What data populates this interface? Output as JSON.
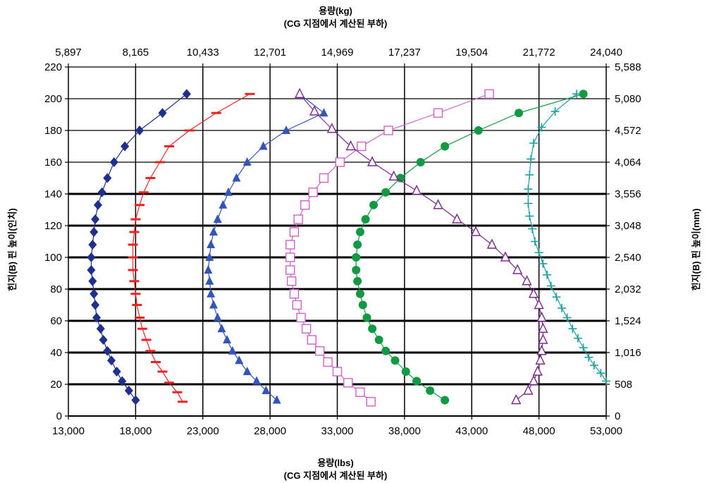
{
  "chart_data": {
    "type": "scatter",
    "top_title_line1": "용량(kg)",
    "top_title_line2": "(CG 지점에서 계산된 부하)",
    "bottom_title_line1": "용량(lbs)",
    "bottom_title_line2": "(CG 지점에서 계산된 부하)",
    "ylabel_left": "힌지(B) 핀 높이(인치)",
    "ylabel_right": "힌지(B) 핀 높이(mm)",
    "xlim": [
      13000,
      53000
    ],
    "ylim": [
      0,
      220
    ],
    "x_ticks_bottom": [
      "13,000",
      "18,000",
      "23,000",
      "28,000",
      "33,000",
      "38,000",
      "43,000",
      "48,000",
      "53,000"
    ],
    "x_ticks_top": [
      "5,897",
      "8,165",
      "10,433",
      "12,701",
      "14,969",
      "17,237",
      "19,504",
      "21,772",
      "24,040"
    ],
    "y_ticks_left": [
      "0",
      "20",
      "40",
      "60",
      "80",
      "100",
      "120",
      "140",
      "160",
      "180",
      "200",
      "220"
    ],
    "y_ticks_right": [
      "0",
      "508",
      "1,016",
      "1,524",
      "2,032",
      "2,540",
      "3,048",
      "3,556",
      "4,064",
      "4,572",
      "5,080",
      "5,588"
    ],
    "grid": true,
    "heavy_gridlines_y": [
      20,
      40,
      60,
      80,
      100,
      120,
      140
    ],
    "legend": "none",
    "series": [
      {
        "color": "#1f2f8f",
        "marker": "diamond",
        "points": [
          [
            21.8,
            203
          ],
          [
            20.0,
            191
          ],
          [
            18.3,
            180
          ],
          [
            17.2,
            170
          ],
          [
            16.4,
            160
          ],
          [
            15.9,
            150
          ],
          [
            15.5,
            141
          ],
          [
            15.2,
            133
          ],
          [
            15.0,
            124
          ],
          [
            14.9,
            116
          ],
          [
            14.8,
            108
          ],
          [
            14.7,
            100
          ],
          [
            14.7,
            92
          ],
          [
            14.8,
            85
          ],
          [
            14.9,
            77
          ],
          [
            15.0,
            70
          ],
          [
            15.1,
            62
          ],
          [
            15.4,
            55
          ],
          [
            15.6,
            48
          ],
          [
            15.9,
            41
          ],
          [
            16.2,
            35
          ],
          [
            16.6,
            28
          ],
          [
            17.0,
            22
          ],
          [
            17.5,
            16
          ],
          [
            18.0,
            10
          ]
        ]
      },
      {
        "color": "#ee2222",
        "marker": "dash",
        "points": [
          [
            26.5,
            203
          ],
          [
            24.0,
            191
          ],
          [
            22.0,
            180
          ],
          [
            20.5,
            170
          ],
          [
            19.8,
            160
          ],
          [
            19.1,
            150
          ],
          [
            18.6,
            141
          ],
          [
            18.3,
            133
          ],
          [
            18.0,
            124
          ],
          [
            17.9,
            116
          ],
          [
            17.8,
            108
          ],
          [
            17.8,
            100
          ],
          [
            17.8,
            92
          ],
          [
            17.9,
            85
          ],
          [
            18.0,
            77
          ],
          [
            18.1,
            70
          ],
          [
            18.3,
            62
          ],
          [
            18.5,
            55
          ],
          [
            18.8,
            48
          ],
          [
            19.1,
            41
          ],
          [
            19.5,
            34
          ],
          [
            20.0,
            28
          ],
          [
            20.5,
            21
          ],
          [
            21.1,
            15
          ],
          [
            21.5,
            9
          ]
        ]
      },
      {
        "color": "#3355bb",
        "marker": "triangle",
        "points": [
          [
            30.2,
            203
          ],
          [
            32.0,
            191
          ],
          [
            29.2,
            180
          ],
          [
            27.5,
            170
          ],
          [
            26.3,
            160
          ],
          [
            25.5,
            150
          ],
          [
            24.9,
            141
          ],
          [
            24.5,
            133
          ],
          [
            24.1,
            124
          ],
          [
            23.8,
            116
          ],
          [
            23.6,
            108
          ],
          [
            23.5,
            100
          ],
          [
            23.4,
            92
          ],
          [
            23.5,
            85
          ],
          [
            23.6,
            77
          ],
          [
            23.8,
            70
          ],
          [
            24.1,
            62
          ],
          [
            24.4,
            55
          ],
          [
            24.8,
            48
          ],
          [
            25.2,
            41
          ],
          [
            25.7,
            35
          ],
          [
            26.3,
            28
          ],
          [
            27.0,
            22
          ],
          [
            27.7,
            16
          ],
          [
            28.5,
            10
          ]
        ]
      },
      {
        "color": "#d060c8",
        "marker": "square",
        "points": [
          [
            44.3,
            203
          ],
          [
            40.5,
            191
          ],
          [
            36.8,
            180
          ],
          [
            34.8,
            170
          ],
          [
            33.2,
            160
          ],
          [
            32.0,
            150
          ],
          [
            31.2,
            141
          ],
          [
            30.6,
            133
          ],
          [
            30.1,
            124
          ],
          [
            29.8,
            116
          ],
          [
            29.5,
            108
          ],
          [
            29.5,
            100
          ],
          [
            29.5,
            92
          ],
          [
            29.6,
            85
          ],
          [
            29.8,
            77
          ],
          [
            30.0,
            70
          ],
          [
            30.3,
            62
          ],
          [
            30.7,
            55
          ],
          [
            31.1,
            48
          ],
          [
            31.7,
            41
          ],
          [
            32.3,
            34
          ],
          [
            33.0,
            28
          ],
          [
            33.8,
            21
          ],
          [
            34.7,
            15
          ],
          [
            35.5,
            9
          ]
        ]
      },
      {
        "color": "#119944",
        "marker": "circle",
        "points": [
          [
            51.3,
            203
          ],
          [
            46.5,
            191
          ],
          [
            43.5,
            180
          ],
          [
            41.0,
            170
          ],
          [
            39.2,
            160
          ],
          [
            37.7,
            150
          ],
          [
            36.6,
            141
          ],
          [
            35.7,
            133
          ],
          [
            35.1,
            124
          ],
          [
            34.7,
            116
          ],
          [
            34.5,
            108
          ],
          [
            34.4,
            100
          ],
          [
            34.4,
            92
          ],
          [
            34.5,
            85
          ],
          [
            34.7,
            77
          ],
          [
            34.9,
            70
          ],
          [
            35.2,
            62
          ],
          [
            35.6,
            55
          ],
          [
            36.1,
            48
          ],
          [
            36.6,
            41
          ],
          [
            37.3,
            35
          ],
          [
            38.1,
            28
          ],
          [
            38.9,
            22
          ],
          [
            39.9,
            16
          ],
          [
            41.0,
            10
          ]
        ]
      },
      {
        "color": "#7a2a8e",
        "marker": "triangle-open",
        "points": [
          [
            30.2,
            203
          ],
          [
            31.3,
            192
          ],
          [
            32.6,
            181
          ],
          [
            34.0,
            170
          ],
          [
            35.6,
            160
          ],
          [
            37.2,
            151
          ],
          [
            38.9,
            142
          ],
          [
            40.5,
            133
          ],
          [
            41.9,
            124
          ],
          [
            43.3,
            116
          ],
          [
            44.5,
            108
          ],
          [
            45.5,
            100
          ],
          [
            46.4,
            92
          ],
          [
            47.1,
            85
          ],
          [
            47.6,
            77
          ],
          [
            48.0,
            70
          ],
          [
            48.2,
            62
          ],
          [
            48.3,
            55
          ],
          [
            48.3,
            48
          ],
          [
            48.2,
            41
          ],
          [
            48.1,
            35
          ],
          [
            47.9,
            28
          ],
          [
            47.6,
            22
          ],
          [
            47.2,
            16
          ],
          [
            46.3,
            10
          ]
        ]
      },
      {
        "color": "#1aa0a0",
        "marker": "plus",
        "points": [
          [
            50.8,
            203
          ],
          [
            49.2,
            192
          ],
          [
            48.2,
            182
          ],
          [
            47.6,
            172
          ],
          [
            47.4,
            162
          ],
          [
            47.3,
            152
          ],
          [
            47.2,
            143
          ],
          [
            47.2,
            134
          ],
          [
            47.3,
            126
          ],
          [
            47.5,
            118
          ],
          [
            47.7,
            110
          ],
          [
            48.0,
            103
          ],
          [
            48.3,
            96
          ],
          [
            48.6,
            89
          ],
          [
            48.9,
            82
          ],
          [
            49.3,
            75
          ],
          [
            49.7,
            68
          ],
          [
            50.1,
            62
          ],
          [
            50.5,
            55
          ],
          [
            50.9,
            49
          ],
          [
            51.3,
            43
          ],
          [
            51.7,
            37
          ],
          [
            52.1,
            32
          ],
          [
            52.6,
            27
          ],
          [
            53.0,
            22
          ]
        ]
      }
    ]
  }
}
